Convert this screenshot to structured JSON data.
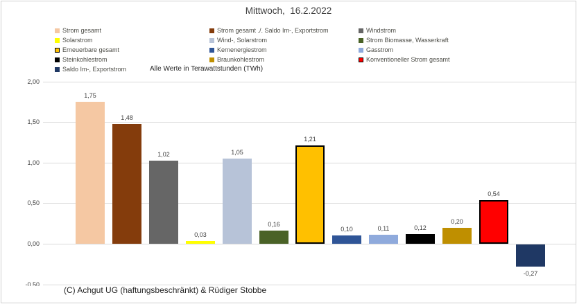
{
  "title": "Mittwoch,  16.2.2022",
  "note": "Alle Werte in Terawattstunden (TWh)",
  "footer": "(C) Achgut UG (haftungsbeschränkt) & Rüdiger Stobbe",
  "legend": {
    "columns": [
      [
        {
          "label": "Strom gesamt",
          "color": "#F5C8A3",
          "border": false
        },
        {
          "label": "Solarstrom",
          "color": "#FFFF00",
          "border": false
        },
        {
          "label": "Erneuerbare gesamt",
          "color": "#FFC000",
          "border": true
        },
        {
          "label": "Steinkohlestrom",
          "color": "#000000",
          "border": false
        },
        {
          "label": "Saldo Im-, Exportstrom",
          "color": "#1F3864",
          "border": false
        }
      ],
      [
        {
          "label": "Strom gesamt ./. Saldo Im-, Exportstrom",
          "color": "#843C0C",
          "border": false
        },
        {
          "label": "Wind-, Solarstrom",
          "color": "#B7C3D8",
          "border": false
        },
        {
          "label": "Kernenergiestrom",
          "color": "#2F5597",
          "border": false
        },
        {
          "label": "Braunkohlestrom",
          "color": "#BF8F00",
          "border": false
        }
      ],
      [
        {
          "label": "Windstrom",
          "color": "#666666",
          "border": false
        },
        {
          "label": "Strom Biomasse, Wasserkraft",
          "color": "#4A6227",
          "border": false
        },
        {
          "label": "Gasstrom",
          "color": "#8FAADC",
          "border": false
        },
        {
          "label": "Konventioneller Strom gesamt",
          "color": "#FF0000",
          "border": true
        }
      ]
    ]
  },
  "chart_data": {
    "type": "bar",
    "title": "Mittwoch,  16.2.2022",
    "subtitle_note": "Alle Werte in Terawattstunden (TWh)",
    "unit": "TWh",
    "categories": [
      "Strom gesamt",
      "Strom gesamt ./. Saldo Im-, Exportstrom",
      "Windstrom",
      "Solarstrom",
      "Wind-, Solarstrom",
      "Strom Biomasse, Wasserkraft",
      "Erneuerbare gesamt",
      "Kernenergiestrom",
      "Gasstrom",
      "Steinkohlestrom",
      "Braunkohlestrom",
      "Konventioneller Strom gesamt",
      "Saldo Im-, Exportstrom"
    ],
    "values": [
      1.75,
      1.48,
      1.02,
      0.03,
      1.05,
      0.16,
      1.21,
      0.1,
      0.11,
      0.12,
      0.2,
      0.54,
      -0.27
    ],
    "value_labels": [
      "1,75",
      "1,48",
      "1,02",
      "0,03",
      "1,05",
      "0,16",
      "1,21",
      "0,10",
      "0,11",
      "0,12",
      "0,20",
      "0,54",
      "-0,27"
    ],
    "colors": [
      "#F5C8A3",
      "#843C0C",
      "#666666",
      "#FFFF00",
      "#B7C3D8",
      "#4A6227",
      "#FFC000",
      "#2F5597",
      "#8FAADC",
      "#000000",
      "#BF8F00",
      "#FF0000",
      "#1F3864"
    ],
    "bordered_bars": [
      false,
      false,
      false,
      false,
      false,
      false,
      true,
      false,
      false,
      false,
      false,
      true,
      false
    ],
    "y_ticks": [
      "2,00",
      "1,50",
      "1,00",
      "0,50",
      "0,00",
      "-0,50"
    ],
    "y_tick_values": [
      2.0,
      1.5,
      1.0,
      0.5,
      0.0,
      -0.5
    ],
    "ylim": [
      -0.5,
      2.0
    ],
    "xlabel": "",
    "ylabel": "",
    "grid": true,
    "legend_position": "top"
  }
}
